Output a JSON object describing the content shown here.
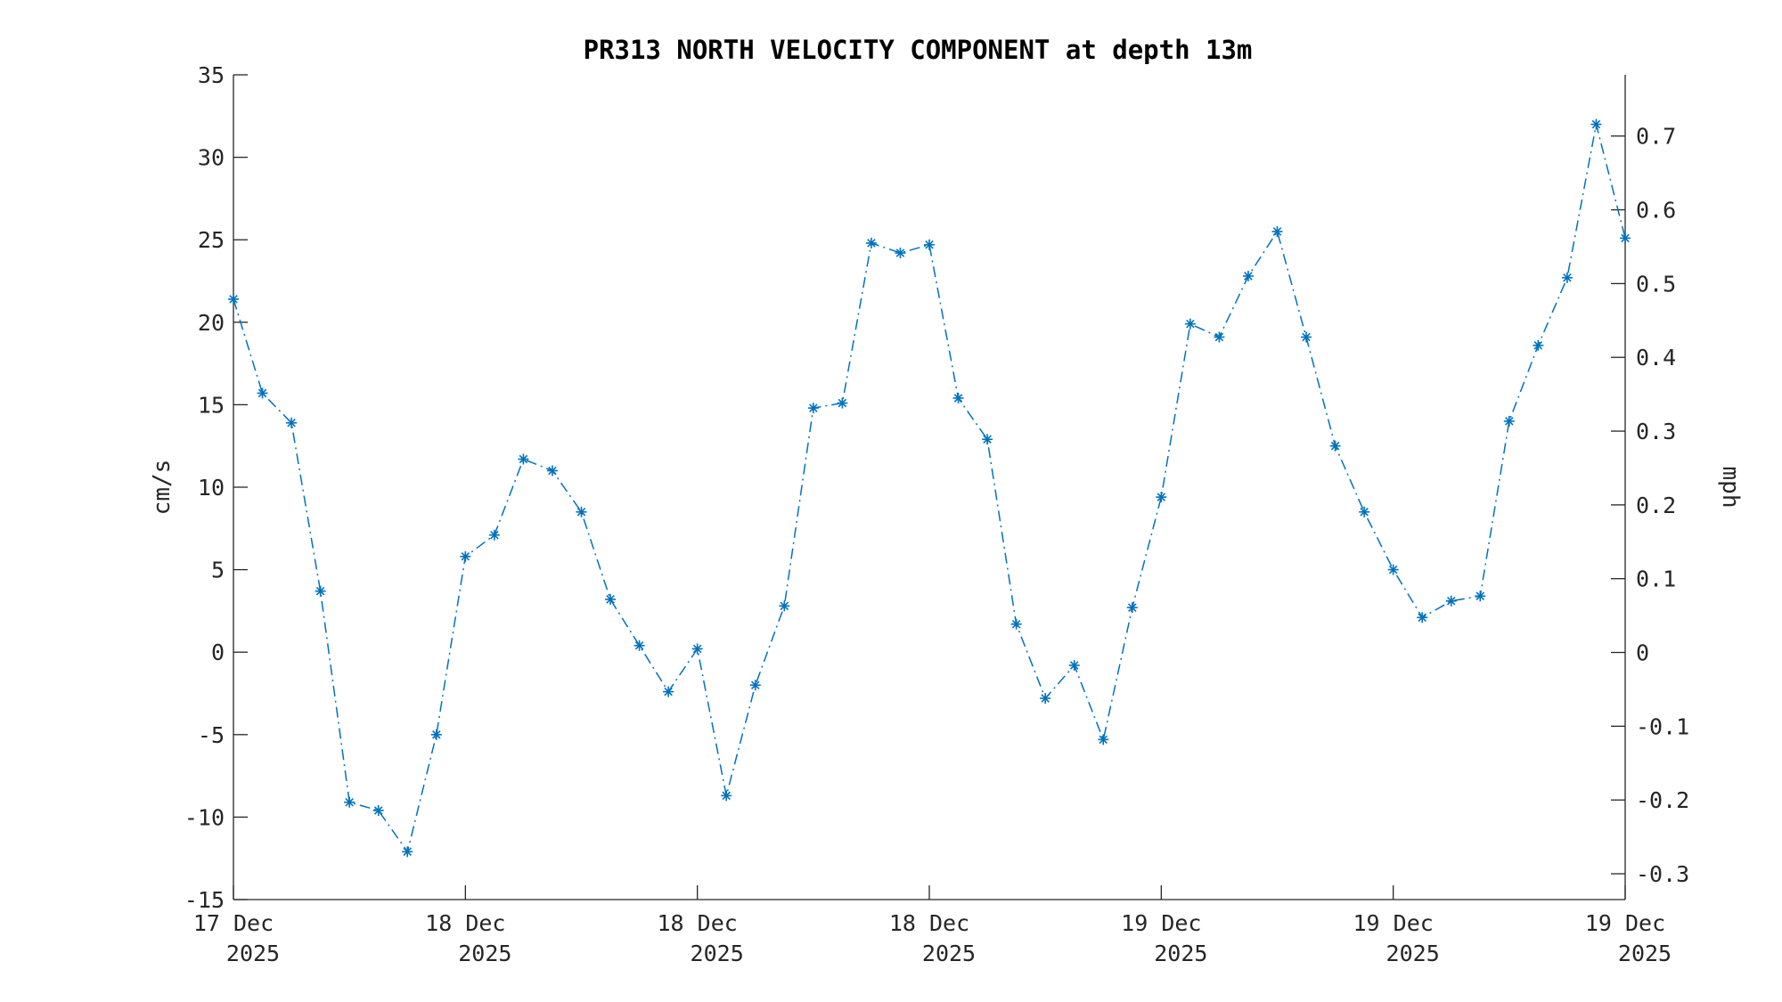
{
  "chart_data": {
    "type": "line",
    "title": "PR313 NORTH VELOCITY COMPONENT at depth 13m",
    "ylabel": "cm/s",
    "ylabel_right": "mph",
    "ylim": [
      -15,
      35
    ],
    "yticks": [
      -15,
      -10,
      -5,
      0,
      5,
      10,
      15,
      20,
      25,
      30,
      35
    ],
    "yticks_right": [
      -0.3,
      -0.2,
      -0.1,
      0,
      0.1,
      0.2,
      0.3,
      0.4,
      0.5,
      0.6,
      0.7
    ],
    "ylim_right_mph": [
      -0.335,
      0.783
    ],
    "xticks": [
      {
        "date": "17 Dec",
        "year": "2025"
      },
      {
        "date": "18 Dec",
        "year": "2025"
      },
      {
        "date": "18 Dec",
        "year": "2025"
      },
      {
        "date": "18 Dec",
        "year": "2025"
      },
      {
        "date": "19 Dec",
        "year": "2025"
      },
      {
        "date": "19 Dec",
        "year": "2025"
      },
      {
        "date": "19 Dec",
        "year": "2025"
      }
    ],
    "grid": false,
    "series_color": "#0072BD",
    "line_style": "dash-dot",
    "marker": "asterisk",
    "series": [
      {
        "values": [
          21.4,
          15.7,
          13.9,
          3.7,
          -9.1,
          -9.6,
          -12.1,
          -5.0,
          5.8,
          7.1,
          11.7,
          11.0,
          8.5,
          3.2,
          0.4,
          -2.4,
          0.2,
          -8.7,
          -2.0,
          2.8,
          14.8,
          15.1,
          24.8,
          24.2,
          24.7,
          15.4,
          12.9,
          1.7,
          -2.8,
          -0.8,
          -5.3,
          2.7,
          9.4,
          19.9,
          19.1,
          22.8,
          25.5,
          19.1,
          12.5,
          8.5,
          5.0,
          2.1,
          3.1,
          3.4,
          14.0,
          18.6,
          22.7,
          32.0,
          25.1
        ]
      }
    ]
  }
}
